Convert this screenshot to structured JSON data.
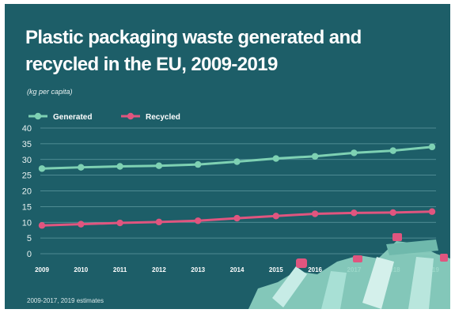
{
  "title": "Plastic packaging waste generated and recycled in the EU, 2009-2019",
  "unit_label": "(kg per capita)",
  "footnote": "2009-2017, 2019 estimates",
  "colors": {
    "background": "#1d5e68",
    "generated": "#7ed1b3",
    "recycled": "#e0557f",
    "grid": "#5f9aa1"
  },
  "chart_data": {
    "type": "line",
    "title": "Plastic packaging waste generated and recycled in the EU, 2009-2019",
    "ylabel": "(kg per capita)",
    "xlabel": "",
    "x": [
      "2009",
      "2010",
      "2011",
      "2012",
      "2013",
      "2014",
      "2015",
      "2016",
      "2017",
      "2018",
      "2019"
    ],
    "yticks": [
      0,
      5,
      10,
      15,
      20,
      25,
      30,
      35,
      40
    ],
    "ylim": [
      0,
      40
    ],
    "grid": true,
    "legend": "top-left",
    "series": [
      {
        "name": "Generated",
        "color": "#7ed1b3",
        "values": [
          27.1,
          27.5,
          27.8,
          28.0,
          28.4,
          29.3,
          30.3,
          31.0,
          32.1,
          32.8,
          34.0
        ]
      },
      {
        "name": "Recycled",
        "color": "#e0557f",
        "values": [
          9.0,
          9.4,
          9.8,
          10.1,
          10.5,
          11.3,
          12.0,
          12.7,
          13.0,
          13.1,
          13.4
        ]
      }
    ]
  }
}
